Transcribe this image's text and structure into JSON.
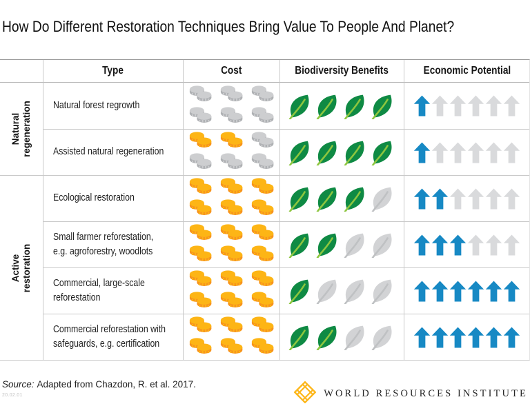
{
  "title": "How Do Different Restoration Techniques Bring Value To People And Planet?",
  "table": {
    "headers": [
      "Type",
      "Cost",
      "Biodiversity Benefits",
      "Economic Potential"
    ],
    "groups": [
      {
        "label": "Natural regeneration",
        "label_lines": [
          "Natural",
          "regeneration"
        ],
        "row_start": 0,
        "row_count": 2
      },
      {
        "label": "Active restoration",
        "label_lines": [
          "Active",
          "restoration"
        ],
        "row_start": 2,
        "row_count": 4
      }
    ],
    "rows": [
      {
        "type": "Natural forest regrowth",
        "cost": {
          "filled": 0,
          "total": 6
        },
        "biodiversity": {
          "filled": 4,
          "total": 4
        },
        "economic": {
          "filled": 1,
          "total": 6
        }
      },
      {
        "type": "Assisted natural regeneration",
        "cost": {
          "filled": 2,
          "total": 6
        },
        "biodiversity": {
          "filled": 4,
          "total": 4
        },
        "economic": {
          "filled": 1,
          "total": 6
        }
      },
      {
        "type": "Ecological restoration",
        "cost": {
          "filled": 6,
          "total": 6
        },
        "biodiversity": {
          "filled": 3,
          "total": 4
        },
        "economic": {
          "filled": 2,
          "total": 6
        }
      },
      {
        "type": "Small farmer reforestation,\ne.g. agroforestry, woodlots",
        "cost": {
          "filled": 6,
          "total": 6
        },
        "biodiversity": {
          "filled": 2,
          "total": 4
        },
        "economic": {
          "filled": 3,
          "total": 6
        }
      },
      {
        "type": "Commercial, large-scale\nreforestation",
        "cost": {
          "filled": 6,
          "total": 6
        },
        "biodiversity": {
          "filled": 1,
          "total": 4
        },
        "economic": {
          "filled": 6,
          "total": 6
        }
      },
      {
        "type": "Commercial reforestation with\nsafeguards, e.g. certification",
        "cost": {
          "filled": 6,
          "total": 6
        },
        "biodiversity": {
          "filled": 2,
          "total": 4
        },
        "economic": {
          "filled": 6,
          "total": 6
        }
      }
    ]
  },
  "chart_data": {
    "type": "table",
    "title": "How Do Different Restoration Techniques Bring Value To People And Planet?",
    "categories": [
      "Natural forest regrowth",
      "Assisted natural regeneration",
      "Ecological restoration",
      "Small farmer reforestation, e.g. agroforestry, woodlots",
      "Commercial, large-scale reforestation",
      "Commercial reforestation with safeguards, e.g. certification"
    ],
    "row_groups": [
      {
        "label": "Natural regeneration",
        "rows": [
          0,
          1
        ]
      },
      {
        "label": "Active restoration",
        "rows": [
          2,
          3,
          4,
          5
        ]
      }
    ],
    "series": [
      {
        "name": "Cost (gold coin stacks, out of 6)",
        "values": [
          0,
          2,
          6,
          6,
          6,
          6
        ]
      },
      {
        "name": "Biodiversity Benefits (green leaves, out of 4)",
        "values": [
          4,
          4,
          3,
          2,
          1,
          2
        ]
      },
      {
        "name": "Economic Potential (blue arrows, out of 6)",
        "values": [
          1,
          1,
          2,
          3,
          6,
          6
        ]
      }
    ]
  },
  "colors": {
    "coin_face": "#FDB515",
    "coin_rim": "#F7941D",
    "coin_gray_face": "#CDCED0",
    "coin_gray_rim": "#AFB1B4",
    "leaf_green": "#0F8A44",
    "leaf_vein": "#8DC63F",
    "leaf_gray": "#D2D3D5",
    "leaf_gray_vein": "#BFC1C3",
    "arrow_blue": "#1789C4",
    "arrow_gray": "#D9DADC",
    "logo_gold": "#FDB71B"
  },
  "footer": {
    "source_prefix": "Source:",
    "source_text": "Adapted from Chazdon, R. et al. 2017.",
    "version": "20.02.01",
    "logo_text": "WORLD RESOURCES INSTITUTE"
  }
}
